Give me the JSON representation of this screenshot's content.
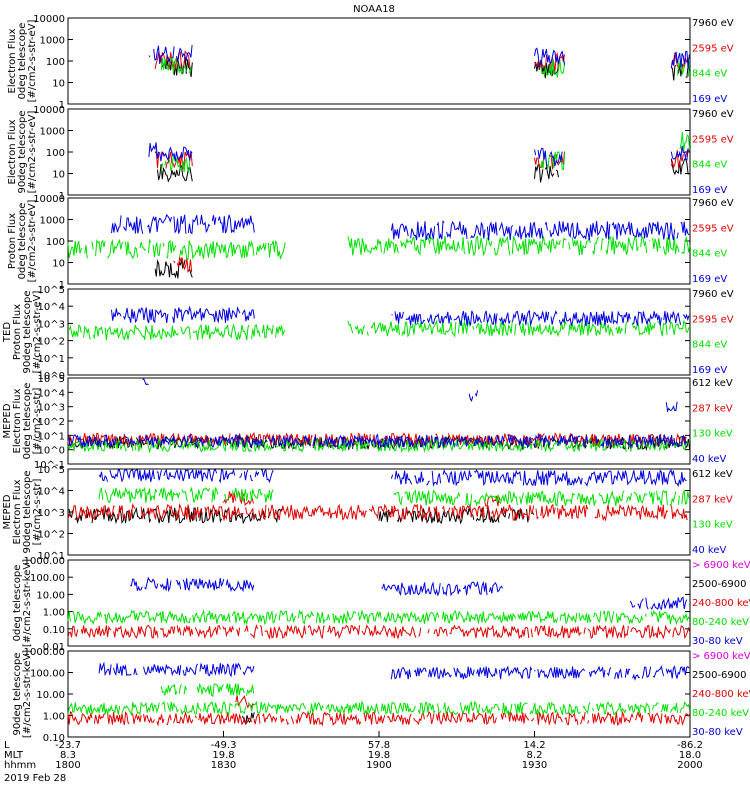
{
  "title": "NOAA18",
  "date": "2019 Feb 28",
  "footer_labels": [
    "L",
    "MLT",
    "hhmm"
  ],
  "x_ticks": [
    {
      "time": "1800",
      "L": "-23.7",
      "MLT": "8.3"
    },
    {
      "time": "1830",
      "L": "-49.3",
      "MLT": "19.8"
    },
    {
      "time": "1900",
      "L": "57.8",
      "MLT": "19.8"
    },
    {
      "time": "1930",
      "L": "14.2",
      "MLT": "8.2"
    },
    {
      "time": "2000",
      "L": "-86.2",
      "MLT": "18.0"
    }
  ],
  "colors": {
    "black": "#000000",
    "red": "#e00000",
    "green": "#00e000",
    "blue": "#0000e0",
    "magenta": "#e000e0"
  },
  "chart_data": [
    {
      "type": "line",
      "ylabel": [
        "Electron Flux",
        "0deg telescope",
        "[#/cm2-s-str-eV]"
      ],
      "scale": "log",
      "ylim": [
        1,
        10000
      ],
      "ytick_labels": [
        "1",
        "10",
        "100",
        "1000",
        "10000"
      ],
      "series": [
        {
          "name": "7960 eV",
          "color": "black",
          "bursts": [
            [
              0.14,
              0.2,
              50
            ],
            [
              0.75,
              0.79,
              40
            ],
            [
              0.97,
              1.0,
              30
            ]
          ]
        },
        {
          "name": "2595 eV",
          "color": "red",
          "bursts": [
            [
              0.14,
              0.2,
              100
            ],
            [
              0.75,
              0.8,
              80
            ],
            [
              0.97,
              1.0,
              90
            ]
          ]
        },
        {
          "name": "844 eV",
          "color": "green",
          "bursts": [
            [
              0.15,
              0.2,
              60
            ],
            [
              0.76,
              0.8,
              50
            ],
            [
              0.98,
              1.0,
              50
            ]
          ]
        },
        {
          "name": "169 eV",
          "color": "blue",
          "bursts": [
            [
              0.13,
              0.2,
              200
            ],
            [
              0.75,
              0.8,
              150
            ],
            [
              0.97,
              1.0,
              120
            ]
          ]
        }
      ]
    },
    {
      "type": "line",
      "ylabel": [
        "Electron Flux",
        "90deg telescope",
        "[#/cm2-s-str-eV]"
      ],
      "scale": "log",
      "ylim": [
        1,
        10000
      ],
      "ytick_labels": [
        "1",
        "10",
        "100",
        "1000",
        "10000"
      ],
      "series": [
        {
          "name": "7960 eV",
          "color": "black",
          "bursts": [
            [
              0.14,
              0.2,
              10
            ],
            [
              0.75,
              0.79,
              10
            ],
            [
              0.97,
              1.0,
              20
            ]
          ]
        },
        {
          "name": "2595 eV",
          "color": "red",
          "bursts": [
            [
              0.14,
              0.2,
              40
            ],
            [
              0.75,
              0.8,
              40
            ],
            [
              0.97,
              1.0,
              50
            ]
          ]
        },
        {
          "name": "844 eV",
          "color": "green",
          "bursts": [
            [
              0.15,
              0.2,
              30
            ],
            [
              0.76,
              0.8,
              40
            ],
            [
              0.98,
              1.0,
              300
            ]
          ]
        },
        {
          "name": "169 eV",
          "color": "blue",
          "bursts": [
            [
              0.13,
              0.2,
              100
            ],
            [
              0.75,
              0.8,
              60
            ],
            [
              0.97,
              1.0,
              80
            ]
          ]
        }
      ]
    },
    {
      "type": "line",
      "ylabel": [
        "Proton Flux",
        "0deg telescope",
        "[#/cm2-s-str-eV]"
      ],
      "scale": "log",
      "ylim": [
        1,
        10000
      ],
      "ytick_labels": [
        "1",
        "10",
        "100",
        "1000",
        "10000"
      ],
      "series": [
        {
          "name": "7960 eV",
          "color": "black",
          "bursts": [
            [
              0.14,
              0.2,
              5
            ]
          ]
        },
        {
          "name": "2595 eV",
          "color": "red",
          "bursts": [
            [
              0.17,
              0.2,
              8
            ]
          ]
        },
        {
          "name": "844 eV",
          "color": "green",
          "bursts": [
            [
              0.0,
              0.35,
              40
            ],
            [
              0.45,
              1.0,
              60
            ]
          ]
        },
        {
          "name": "169 eV",
          "color": "blue",
          "bursts": [
            [
              0.07,
              0.3,
              600
            ],
            [
              0.52,
              1.0,
              300
            ]
          ]
        }
      ]
    },
    {
      "type": "line",
      "ylabel": [
        "TED",
        "Proton Flux",
        "90deg telescope",
        "[#/cm2-s-str-eV]"
      ],
      "scale": "log",
      "ylim": [
        1,
        100000
      ],
      "ytick_labels": [
        "10^0",
        "10^1",
        "10^2",
        "10^3",
        "10^4",
        "10^5"
      ],
      "series": [
        {
          "name": "7960 eV",
          "color": "black",
          "bursts": []
        },
        {
          "name": "2595 eV",
          "color": "red",
          "bursts": []
        },
        {
          "name": "844 eV",
          "color": "green",
          "bursts": [
            [
              0.0,
              0.35,
              300
            ],
            [
              0.45,
              1.0,
              500
            ]
          ]
        },
        {
          "name": "169 eV",
          "color": "blue",
          "bursts": [
            [
              0.07,
              0.3,
              3000
            ],
            [
              0.52,
              1.0,
              2000
            ]
          ]
        }
      ]
    },
    {
      "type": "line",
      "ylabel": [
        "MEPED",
        "Electron Flux",
        "0deg telescope",
        "[#/cm2-s-str]"
      ],
      "scale": "log",
      "ylim": [
        0.1,
        100000
      ],
      "ytick_labels": [
        "10^-1",
        "10^0",
        "10^1",
        "10^2",
        "10^3",
        "10^4",
        "10^5"
      ],
      "series": [
        {
          "name": "612 keV",
          "color": "black",
          "bursts": [
            [
              0.0,
              1.0,
              3
            ]
          ]
        },
        {
          "name": "287 keV",
          "color": "red",
          "bursts": [
            [
              0.0,
              1.0,
              5
            ]
          ]
        },
        {
          "name": "130 keV",
          "color": "green",
          "bursts": [
            [
              0.0,
              1.0,
              2
            ]
          ]
        },
        {
          "name": "40 keV",
          "color": "blue",
          "bursts": [
            [
              0.0,
              1.0,
              4
            ],
            [
              0.12,
              0.13,
              50000
            ],
            [
              0.645,
              0.66,
              5000
            ],
            [
              0.96,
              0.98,
              1000
            ]
          ]
        }
      ]
    },
    {
      "type": "line",
      "ylabel": [
        "MEPED",
        "Electron Flux",
        "90deg telescope",
        "[#/cm2-s-str]"
      ],
      "scale": "log",
      "ylim": [
        1,
        100000
      ],
      "ytick_labels": [
        "10^1",
        "10^2",
        "10^3",
        "10^4",
        "10^5"
      ],
      "series": [
        {
          "name": "612 keV",
          "color": "black",
          "bursts": [
            [
              0.0,
              0.35,
              200
            ],
            [
              0.5,
              0.75,
              200
            ]
          ]
        },
        {
          "name": "287 keV",
          "color": "red",
          "bursts": [
            [
              0.0,
              1.0,
              300
            ],
            [
              0.25,
              0.3,
              2000
            ],
            [
              0.67,
              0.7,
              1000
            ]
          ]
        },
        {
          "name": "130 keV",
          "color": "green",
          "bursts": [
            [
              0.05,
              0.33,
              3000
            ],
            [
              0.52,
              1.0,
              2000
            ]
          ]
        },
        {
          "name": "40 keV",
          "color": "blue",
          "bursts": [
            [
              0.05,
              0.33,
              50000
            ],
            [
              0.52,
              1.0,
              30000
            ]
          ]
        }
      ]
    },
    {
      "type": "line",
      "ylabel": [
        "0deg telescope",
        "[#/cm2-s-str-keV]"
      ],
      "scale": "log",
      "ylim": [
        0.01,
        10000
      ],
      "ytick_labels": [
        "0.01",
        "0.10",
        "1.00",
        "10.00",
        "100.00",
        "1000.00"
      ],
      "series": [
        {
          "name": "> 6900 keV",
          "color": "magenta",
          "bursts": []
        },
        {
          "name": "2500-6900",
          "color": "black",
          "bursts": []
        },
        {
          "name": "240-800 keV",
          "color": "red",
          "bursts": [
            [
              0.0,
              1.0,
              0.1
            ]
          ]
        },
        {
          "name": "80-240 keV",
          "color": "green",
          "bursts": [
            [
              0.0,
              1.0,
              1
            ]
          ]
        },
        {
          "name": "30-80 keV",
          "color": "blue",
          "bursts": [
            [
              0.1,
              0.3,
              200
            ],
            [
              0.5,
              0.7,
              100
            ],
            [
              0.9,
              1.0,
              10
            ]
          ]
        }
      ]
    },
    {
      "type": "line",
      "ylabel": [
        "90deg telescope",
        "[#/cm2-s-str-keV]"
      ],
      "scale": "log",
      "ylim": [
        0.01,
        10000
      ],
      "ytick_labels": [
        "0.10",
        "1.00",
        "10.00",
        "100.00",
        "1000.00"
      ],
      "series": [
        {
          "name": "> 6900 keV",
          "color": "magenta",
          "bursts": []
        },
        {
          "name": "2500-6900",
          "color": "black",
          "bursts": [
            [
              0.28,
              0.3,
              0.2
            ]
          ]
        },
        {
          "name": "240-800 keV",
          "color": "red",
          "bursts": [
            [
              0.0,
              1.0,
              0.2
            ],
            [
              0.27,
              0.3,
              3
            ]
          ]
        },
        {
          "name": "80-240 keV",
          "color": "green",
          "bursts": [
            [
              0.0,
              1.0,
              1
            ],
            [
              0.15,
              0.3,
              20
            ]
          ]
        },
        {
          "name": "30-80 keV",
          "color": "blue",
          "bursts": [
            [
              0.05,
              0.3,
              500
            ],
            [
              0.52,
              1.0,
              300
            ]
          ]
        }
      ]
    }
  ]
}
